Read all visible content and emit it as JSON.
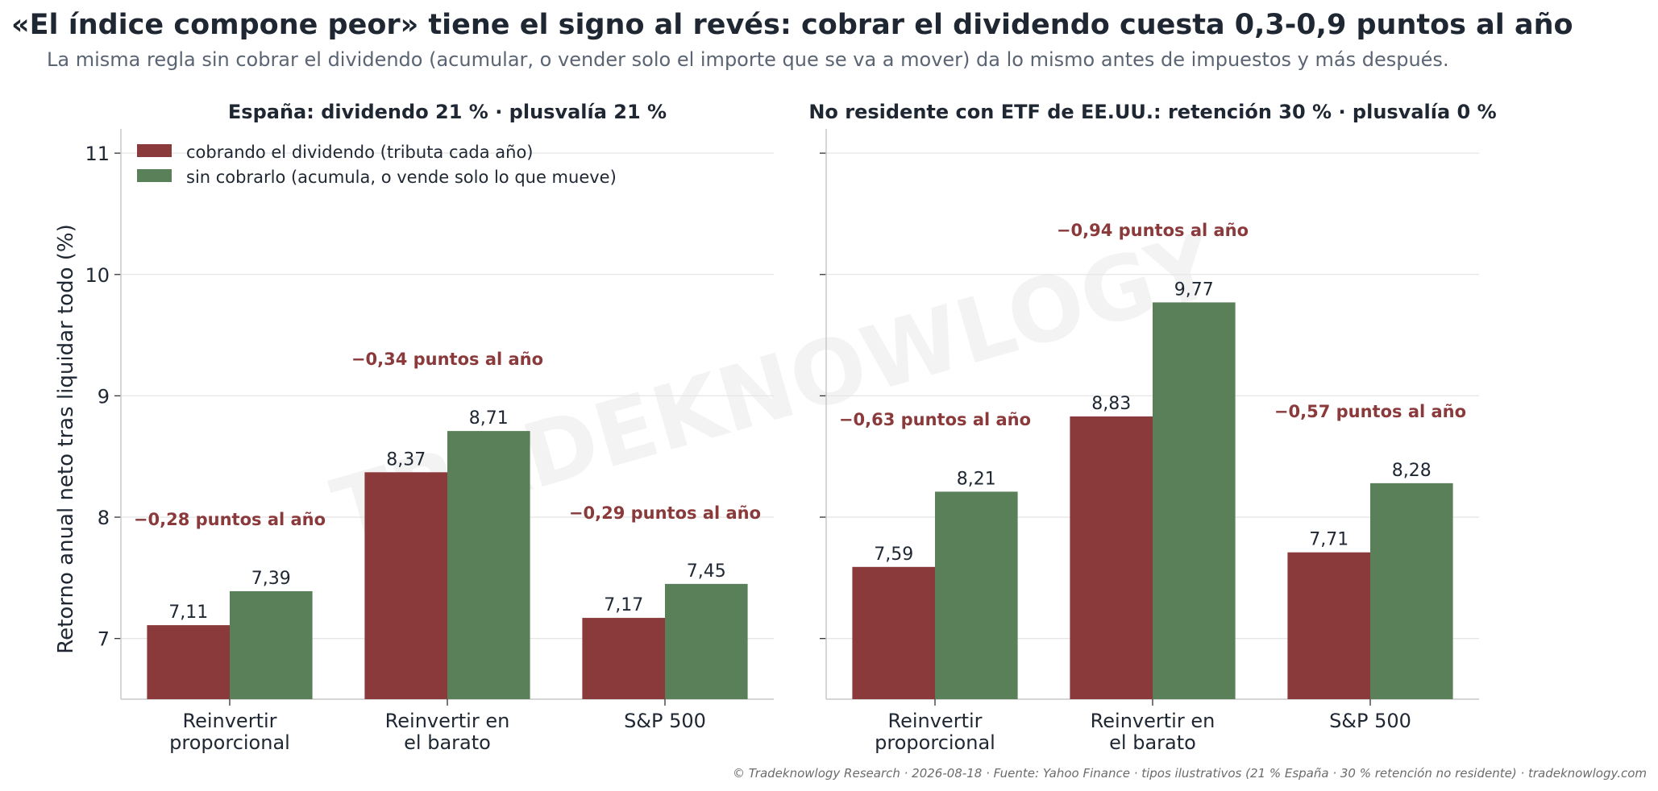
{
  "title": "«El índice compone peor» tiene el signo al revés: cobrar el dividendo cuesta 0,3-0,9 puntos al año",
  "subtitle": "La misma regla sin cobrar el dividendo (acumular, o vender solo el importe que se va a mover) da lo mismo antes de impuestos y más después.",
  "watermark": "TRADEKNOWLOGY",
  "footer": "© Tradeknowlogy Research   ·   2026-08-18   ·   Fuente: Yahoo Finance · tipos ilustrativos (21 % España · 30 % retención no residente)   ·   tradeknowlogy.com",
  "colors": {
    "cobrando": "#8b3a3c",
    "sin_cobrar": "#5a8059",
    "gap_text": "#8b3a3c"
  },
  "chart_data": [
    {
      "type": "bar",
      "title": "España: dividendo 21 % · plusvalía 21 %",
      "ylabel": "Retorno anual neto tras liquidar todo (%)",
      "ylim": [
        6.5,
        11.2
      ],
      "yticks": [
        7,
        8,
        9,
        10,
        11
      ],
      "categories": [
        [
          "Reinvertir",
          "proporcional"
        ],
        [
          "Reinvertir en",
          "el barato"
        ],
        [
          "S&P 500"
        ]
      ],
      "series": [
        {
          "name": "cobrando el dividendo (tributa cada año)",
          "values": [
            7.11,
            8.37,
            7.17
          ],
          "labels": [
            "7,11",
            "8,37",
            "7,17"
          ]
        },
        {
          "name": "sin cobrarlo (acumula, o vende solo lo que mueve)",
          "values": [
            7.39,
            8.71,
            7.45
          ],
          "labels": [
            "7,39",
            "8,71",
            "7,45"
          ]
        }
      ],
      "annotations": [
        "−0,28 puntos al año",
        "−0,34 puntos al año",
        "−0,29 puntos al año"
      ],
      "legend": "top-left",
      "grid": "y"
    },
    {
      "type": "bar",
      "title": "No residente con ETF de EE.UU.: retención 30 % · plusvalía 0 %",
      "ylabel": "",
      "ylim": [
        6.5,
        11.2
      ],
      "yticks": [
        7,
        8,
        9,
        10,
        11
      ],
      "categories": [
        [
          "Reinvertir",
          "proporcional"
        ],
        [
          "Reinvertir en",
          "el barato"
        ],
        [
          "S&P 500"
        ]
      ],
      "series": [
        {
          "name": "cobrando el dividendo (tributa cada año)",
          "values": [
            7.59,
            8.83,
            7.71
          ],
          "labels": [
            "7,59",
            "8,83",
            "7,71"
          ]
        },
        {
          "name": "sin cobrarlo (acumula, o vende solo lo que mueve)",
          "values": [
            8.21,
            9.77,
            8.28
          ],
          "labels": [
            "8,21",
            "9,77",
            "8,28"
          ]
        }
      ],
      "annotations": [
        "−0,63 puntos al año",
        "−0,94 puntos al año",
        "−0,57 puntos al año"
      ],
      "grid": "y"
    }
  ]
}
